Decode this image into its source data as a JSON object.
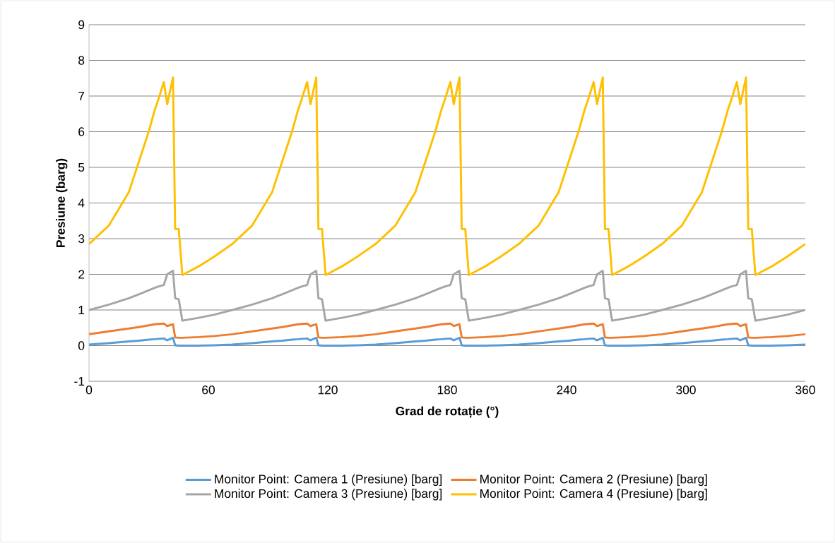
{
  "chart_data": {
    "type": "line",
    "xlabel": "Grad de rotație (°)",
    "ylabel": "Presiune (barg)",
    "x": [
      0,
      10,
      20,
      25,
      30,
      33,
      35,
      37.6,
      39.3,
      42.2,
      43.3,
      45.1,
      46.9,
      55,
      63,
      72,
      82,
      92,
      97,
      102,
      105,
      107,
      109.6,
      111.3,
      114.2,
      115.3,
      117.1,
      118.9,
      127,
      135,
      144,
      154,
      164,
      169,
      174,
      177,
      179,
      181.6,
      183.3,
      186.2,
      187.3,
      189.1,
      190.9,
      199,
      207,
      216,
      226,
      236,
      241,
      246,
      249,
      251,
      253.6,
      255.3,
      258.2,
      259.3,
      261.1,
      262.9,
      271,
      279,
      288,
      298,
      308,
      313,
      318,
      321,
      323,
      325.6,
      327.3,
      330.2,
      331.3,
      333.1,
      334.9,
      343,
      351,
      360
    ],
    "series": [
      {
        "name": "Monitor Point: Camera 1  (Presiune) [barg]",
        "color": "#5b9bd5",
        "values": [
          0.03,
          0.07,
          0.12,
          0.14,
          0.17,
          0.18,
          0.19,
          0.2,
          0.15,
          0.22,
          0.01,
          0,
          0,
          0,
          0.01,
          0.03,
          0.07,
          0.12,
          0.14,
          0.17,
          0.18,
          0.19,
          0.2,
          0.15,
          0.22,
          0.01,
          0,
          0,
          0,
          0.01,
          0.03,
          0.07,
          0.12,
          0.14,
          0.17,
          0.18,
          0.19,
          0.2,
          0.15,
          0.22,
          0.01,
          0,
          0,
          0,
          0.01,
          0.03,
          0.07,
          0.12,
          0.14,
          0.17,
          0.18,
          0.19,
          0.2,
          0.15,
          0.22,
          0.01,
          0,
          0,
          0,
          0.01,
          0.03,
          0.07,
          0.12,
          0.14,
          0.17,
          0.18,
          0.19,
          0.2,
          0.15,
          0.22,
          0.01,
          0,
          0,
          0,
          0.01,
          0.03
        ]
      },
      {
        "name": "Monitor Point: Camera 2  (Presiune) [barg]",
        "color": "#ed7d31",
        "values": [
          0.32,
          0.4,
          0.48,
          0.52,
          0.57,
          0.6,
          0.61,
          0.62,
          0.55,
          0.6,
          0.23,
          0.22,
          0.22,
          0.24,
          0.27,
          0.32,
          0.4,
          0.48,
          0.52,
          0.57,
          0.6,
          0.61,
          0.62,
          0.55,
          0.6,
          0.23,
          0.22,
          0.22,
          0.24,
          0.27,
          0.32,
          0.4,
          0.48,
          0.52,
          0.57,
          0.6,
          0.61,
          0.62,
          0.55,
          0.6,
          0.23,
          0.22,
          0.22,
          0.24,
          0.27,
          0.32,
          0.4,
          0.48,
          0.52,
          0.57,
          0.6,
          0.61,
          0.62,
          0.55,
          0.6,
          0.23,
          0.22,
          0.22,
          0.24,
          0.27,
          0.32,
          0.4,
          0.48,
          0.52,
          0.57,
          0.6,
          0.61,
          0.62,
          0.55,
          0.6,
          0.23,
          0.22,
          0.22,
          0.24,
          0.27,
          0.32
        ]
      },
      {
        "name": "Monitor Point: Camera 3  (Presiune) [barg]",
        "color": "#a5a5a5",
        "values": [
          1.0,
          1.15,
          1.33,
          1.44,
          1.55,
          1.62,
          1.66,
          1.7,
          2.0,
          2.1,
          1.33,
          1.3,
          0.7,
          0.78,
          0.87,
          1.0,
          1.15,
          1.33,
          1.44,
          1.55,
          1.62,
          1.66,
          1.7,
          2.0,
          2.1,
          1.33,
          1.3,
          0.7,
          0.78,
          0.87,
          1.0,
          1.15,
          1.33,
          1.44,
          1.55,
          1.62,
          1.66,
          1.7,
          2.0,
          2.1,
          1.33,
          1.3,
          0.7,
          0.78,
          0.87,
          1.0,
          1.15,
          1.33,
          1.44,
          1.55,
          1.62,
          1.66,
          1.7,
          2.0,
          2.1,
          1.33,
          1.3,
          0.7,
          0.78,
          0.87,
          1.0,
          1.15,
          1.33,
          1.44,
          1.55,
          1.62,
          1.66,
          1.7,
          2.0,
          2.1,
          1.33,
          1.3,
          0.7,
          0.78,
          0.87,
          1.0
        ]
      },
      {
        "name": "Monitor Point: Camera 4 (Presiune)  [barg]",
        "color": "#ffc000",
        "values": [
          2.85,
          3.37,
          4.3,
          5.15,
          6.0,
          6.6,
          6.93,
          7.39,
          6.77,
          7.52,
          3.27,
          3.27,
          1.98,
          2.22,
          2.5,
          2.85,
          3.37,
          4.3,
          5.15,
          6.0,
          6.6,
          6.93,
          7.39,
          6.77,
          7.52,
          3.27,
          3.27,
          1.98,
          2.22,
          2.5,
          2.85,
          3.37,
          4.3,
          5.15,
          6.0,
          6.6,
          6.93,
          7.39,
          6.77,
          7.52,
          3.27,
          3.27,
          1.98,
          2.22,
          2.5,
          2.85,
          3.37,
          4.3,
          5.15,
          6.0,
          6.6,
          6.93,
          7.39,
          6.77,
          7.52,
          3.27,
          3.27,
          1.98,
          2.22,
          2.5,
          2.85,
          3.37,
          4.3,
          5.15,
          6.0,
          6.6,
          6.93,
          7.39,
          6.77,
          7.52,
          3.27,
          3.27,
          1.98,
          2.22,
          2.5,
          2.85
        ]
      }
    ],
    "xlim": [
      0,
      360
    ],
    "xticks": [
      0,
      60,
      120,
      180,
      240,
      300,
      360
    ],
    "ylim": [
      -1,
      9
    ],
    "yticks": [
      -1,
      0,
      1,
      2,
      3,
      4,
      5,
      6,
      7,
      8,
      9
    ],
    "grid": "y",
    "legend": "bottom"
  }
}
